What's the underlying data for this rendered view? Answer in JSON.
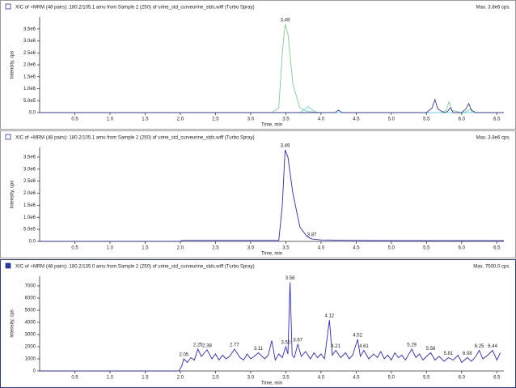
{
  "chart_data": [
    {
      "type": "line",
      "title": "XIC of +MRM (48 pairs): 180.2/105.1 amu from Sample 2 (250) of urine_std_curveurine_stds.wiff (Turbo Spray)",
      "max_label": "Max. 3.8e6 cps.",
      "x_label": "Time, min",
      "y_label": "Intensity, cps",
      "xlim": [
        0,
        6.6
      ],
      "xticks": [
        0.5,
        {
          "value": 1,
          "label": "1.0"
        },
        1.5,
        {
          "value": 2,
          "label": "2.0"
        },
        2.5,
        {
          "value": 3,
          "label": "3.0"
        },
        3.5,
        {
          "value": 4,
          "label": "4.0"
        },
        4.5,
        {
          "value": 5,
          "label": "5.0"
        },
        5.5,
        {
          "value": 6,
          "label": "6.0"
        },
        6.5
      ],
      "ylim": [
        0,
        4000000
      ],
      "yticks": [
        {
          "value": 0,
          "label": "0.0"
        },
        {
          "value": 500000,
          "label": "5.0e5"
        },
        {
          "value": 1000000,
          "label": "1.0e6"
        },
        {
          "value": 1500000,
          "label": "1.5e6"
        },
        {
          "value": 2000000,
          "label": "2.0e6"
        },
        {
          "value": 2500000,
          "label": "2.5e6"
        },
        {
          "value": 3000000,
          "label": "3.0e6"
        },
        {
          "value": 3500000,
          "label": "3.5e6"
        }
      ],
      "series": [
        {
          "color": "#7fd08a",
          "x": [
            0,
            3.3,
            3.4,
            3.45,
            3.49,
            3.53,
            3.6,
            3.7,
            3.8,
            4.0,
            5.7,
            5.78,
            5.82,
            5.86,
            6.0,
            6.08,
            6.12,
            6.16,
            6.6
          ],
          "values": [
            0,
            0,
            200000,
            2500000,
            3700000,
            3300000,
            1200000,
            200000,
            50000,
            0,
            0,
            100000,
            450000,
            100000,
            0,
            50000,
            150000,
            0,
            0
          ]
        },
        {
          "color": "#5fd6e6",
          "x": [
            0,
            3.7,
            3.78,
            3.82,
            3.88,
            3.95,
            6.6
          ],
          "values": [
            0,
            0,
            150000,
            250000,
            100000,
            0,
            0
          ]
        },
        {
          "color": "#3a3aa8",
          "x": [
            0,
            4.2,
            4.25,
            4.3,
            5.5,
            5.58,
            5.62,
            5.66,
            5.75,
            5.8,
            5.84,
            5.88,
            6.0,
            6.06,
            6.1,
            6.14,
            6.2,
            6.6
          ],
          "values": [
            0,
            0,
            100000,
            0,
            0,
            200000,
            550000,
            150000,
            0,
            50000,
            200000,
            0,
            0,
            150000,
            380000,
            100000,
            0,
            0
          ]
        }
      ],
      "peaks": {
        "x": [
          3.49
        ],
        "labels": [
          "3.49"
        ]
      }
    },
    {
      "type": "line",
      "title": "XIC of +MRM (48 pairs): 180.2/105.1 amu from Sample 2 (250) of urine_std_curveurine_stds.wiff (Turbo Spray)",
      "max_label": "Max. 3.8e6 cps.",
      "x_label": "Time, min",
      "y_label": "Intensity, cps",
      "xlim": [
        0,
        6.6
      ],
      "xticks": [
        0.5,
        {
          "value": 1,
          "label": "1.0"
        },
        1.5,
        {
          "value": 2,
          "label": "2.0"
        },
        2.5,
        {
          "value": 3,
          "label": "3.0"
        },
        3.5,
        {
          "value": 4,
          "label": "4.0"
        },
        4.5,
        {
          "value": 5,
          "label": "5.0"
        },
        5.5,
        {
          "value": 6,
          "label": "6.0"
        },
        6.5
      ],
      "ylim": [
        0,
        3900000
      ],
      "yticks": [
        {
          "value": 0,
          "label": "0.0"
        },
        {
          "value": 500000,
          "label": "5.0e5"
        },
        {
          "value": 1000000,
          "label": "1.0e6"
        },
        {
          "value": 1500000,
          "label": "1.5e6"
        },
        {
          "value": 2000000,
          "label": "2.0e6"
        },
        {
          "value": 2500000,
          "label": "2.5e6"
        },
        {
          "value": 3000000,
          "label": "3.0e6"
        },
        {
          "value": 3500000,
          "label": "3.5e6"
        }
      ],
      "series": [
        {
          "color": "#2a2ad0",
          "x": [
            0,
            2.0,
            2.02,
            3.4,
            3.45,
            3.49,
            3.53,
            3.6,
            3.7,
            3.8,
            3.87,
            4.0,
            4.5,
            5.5,
            6.6
          ],
          "values": [
            0,
            0,
            40000,
            40000,
            1500000,
            3800000,
            3500000,
            2000000,
            600000,
            200000,
            100000,
            60000,
            40000,
            30000,
            30000
          ]
        }
      ],
      "peaks": {
        "x": [
          3.49,
          3.87
        ],
        "labels": [
          "3.49",
          "3.87"
        ]
      }
    },
    {
      "type": "line",
      "title": "XIC of +MRM (48 pairs): 180.2/135.0 amu from Sample 2 (250) of urine_std_curveurine_stds.wiff (Turbo Spray)",
      "max_label": "Max. 7500.0 cps.",
      "x_label": "Time, min",
      "y_label": "Intensity, cps",
      "xlim": [
        0,
        6.6
      ],
      "xticks": [
        0.5,
        {
          "value": 1,
          "label": "1.0"
        },
        1.5,
        {
          "value": 2,
          "label": "2.0"
        },
        2.5,
        {
          "value": 3,
          "label": "3.0"
        },
        3.5,
        {
          "value": 4,
          "label": "4.0"
        },
        4.5,
        {
          "value": 5,
          "label": "5.0"
        },
        5.5,
        {
          "value": 6,
          "label": "6.0"
        },
        6.5
      ],
      "ylim": [
        0,
        7800
      ],
      "yticks": [
        0,
        1000,
        2000,
        3000,
        4000,
        5000,
        6000,
        7000
      ],
      "series": [
        {
          "color": "#2a2ad0",
          "x": [
            0,
            1.98,
            2.02,
            2.05,
            2.1,
            2.15,
            2.2,
            2.25,
            2.3,
            2.38,
            2.45,
            2.5,
            2.55,
            2.6,
            2.65,
            2.7,
            2.77,
            2.85,
            2.9,
            2.95,
            3.0,
            3.05,
            3.11,
            3.2,
            3.25,
            3.3,
            3.35,
            3.4,
            3.45,
            3.5,
            3.53,
            3.56,
            3.59,
            3.62,
            3.67,
            3.72,
            3.78,
            3.85,
            3.9,
            3.95,
            4.0,
            4.05,
            4.12,
            4.16,
            4.21,
            4.28,
            4.35,
            4.4,
            4.45,
            4.52,
            4.56,
            4.61,
            4.68,
            4.75,
            4.8,
            4.85,
            4.9,
            4.95,
            5.0,
            5.05,
            5.1,
            5.15,
            5.2,
            5.29,
            5.35,
            5.4,
            5.45,
            5.5,
            5.56,
            5.62,
            5.68,
            5.75,
            5.81,
            5.88,
            5.95,
            6.0,
            6.08,
            6.14,
            6.2,
            6.25,
            6.3,
            6.37,
            6.44,
            6.5,
            6.55
          ],
          "values": [
            0,
            0,
            400,
            1000,
            700,
            1100,
            900,
            1800,
            1200,
            1750,
            1000,
            1400,
            900,
            1300,
            1000,
            1200,
            1800,
            1100,
            900,
            1400,
            1000,
            1200,
            1500,
            1000,
            1300,
            2500,
            900,
            1400,
            1100,
            2000,
            1400,
            7300,
            1300,
            1100,
            2200,
            1200,
            1600,
            1000,
            1500,
            1100,
            1400,
            1000,
            4200,
            1300,
            1700,
            1100,
            1500,
            1000,
            1300,
            2600,
            1200,
            1700,
            1000,
            1400,
            1100,
            1600,
            1000,
            1300,
            900,
            1500,
            1100,
            1300,
            900,
            1800,
            1100,
            1400,
            900,
            1200,
            1500,
            900,
            1200,
            800,
            1100,
            900,
            1300,
            700,
            1100,
            800,
            1200,
            1700,
            1000,
            1300,
            1700,
            900,
            1500
          ]
        }
      ],
      "peaks": {
        "x": [
          2.05,
          2.25,
          2.38,
          2.77,
          3.11,
          3.5,
          3.56,
          3.67,
          4.12,
          4.21,
          4.52,
          4.61,
          5.29,
          5.56,
          5.81,
          6.08,
          6.25,
          6.44
        ],
        "labels": [
          "2.05",
          "2.25",
          "2.38",
          "2.77",
          "3.11",
          "3.50",
          "3.56",
          "3.67",
          "4.12",
          "4.21",
          "4.52",
          "4.61",
          "5.29",
          "5.56",
          "5.81",
          "6.08",
          "6.25",
          "6.44"
        ]
      }
    }
  ]
}
